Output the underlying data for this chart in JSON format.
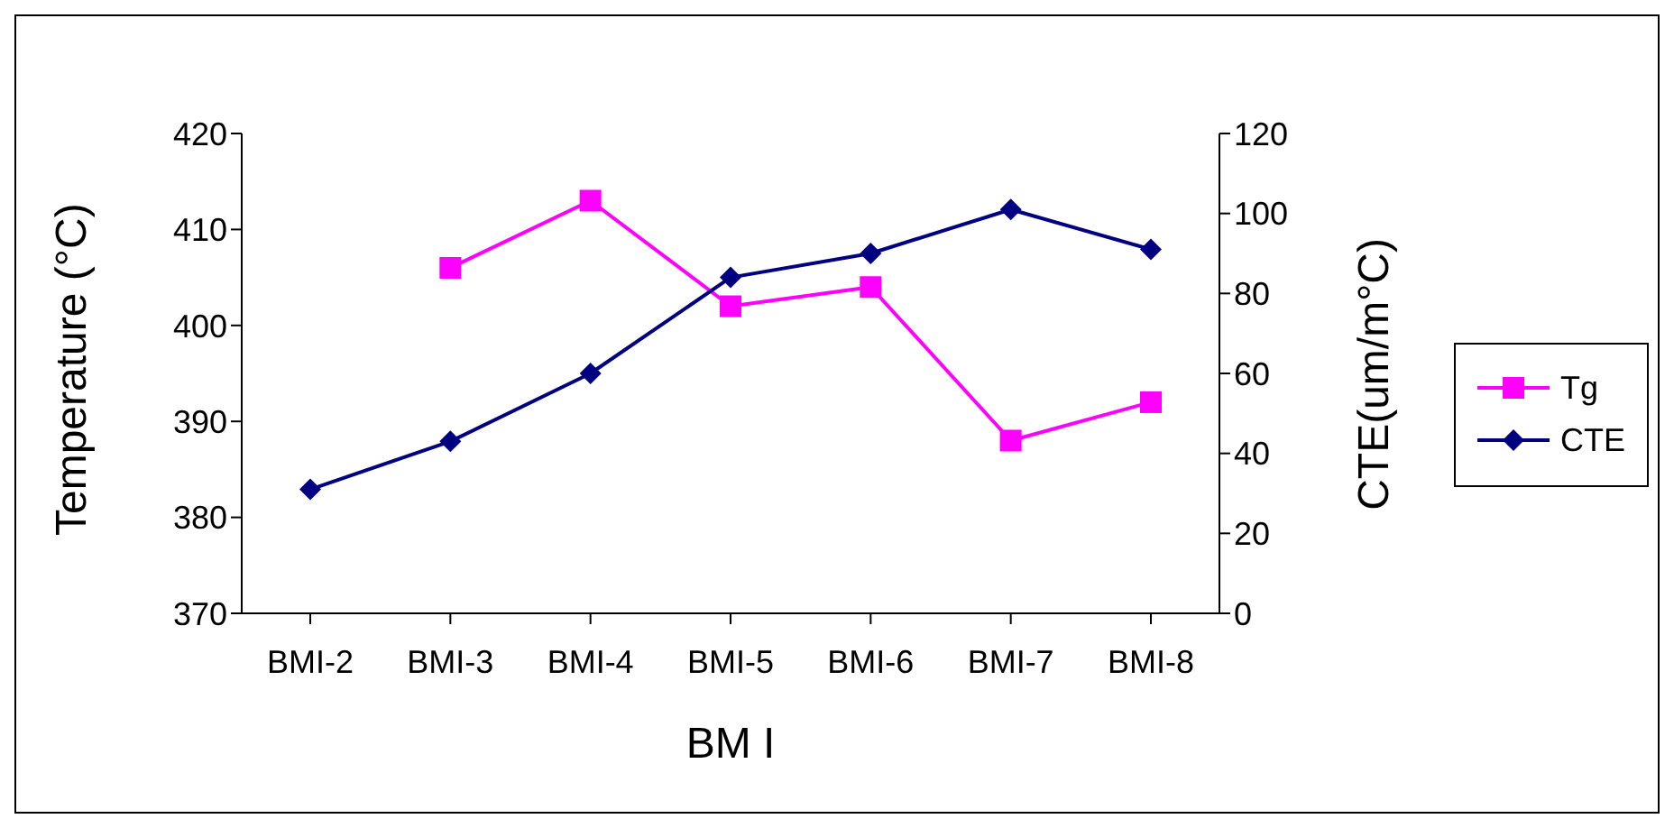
{
  "chart_data": {
    "type": "line",
    "xlabel": "BM I",
    "ylabel": "Temperature (°C)",
    "y2label": "CTE(um/m°C)",
    "categories": [
      "BMI-2",
      "BMI-3",
      "BMI-4",
      "BMI-5",
      "BMI-6",
      "BMI-7",
      "BMI-8"
    ],
    "series": [
      {
        "name": "Tg",
        "color": "#ff00ff",
        "marker": "square",
        "values": [
          null,
          406,
          413,
          402,
          404,
          388,
          392
        ]
      },
      {
        "name": "CTE",
        "color": "#000080",
        "marker": "diamond",
        "axis": "y2",
        "values": [
          31,
          43,
          60,
          84,
          90,
          101,
          91
        ]
      }
    ],
    "ylim": [
      370,
      420
    ],
    "yticks": [
      370,
      380,
      390,
      400,
      410,
      420
    ],
    "y2lim": [
      0,
      120
    ],
    "y2ticks": [
      0,
      20,
      40,
      60,
      80,
      100,
      120
    ],
    "legend": "right"
  }
}
